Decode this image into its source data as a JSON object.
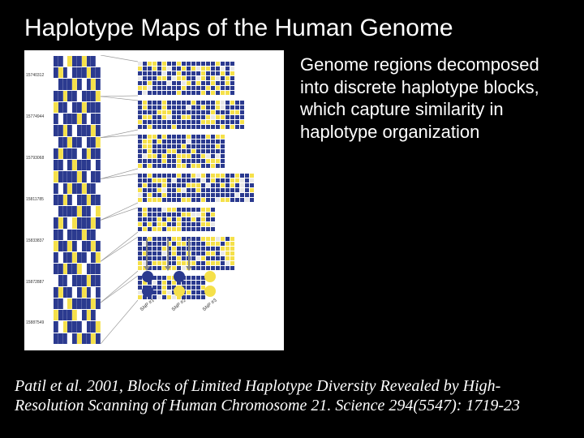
{
  "title": "Haplotype Maps of the Human Genome",
  "description": "Genome regions decomposed into discrete haplotype blocks, which capture similarity in haplotype organization",
  "citation": "Patil et al. 2001, Blocks of Limited Haplotype Diversity Revealed by High-Resolution Scanning of Human Chromosome 21. Science 294(5547): 1719-23",
  "figure": {
    "background_color": "#ffffff",
    "left_column": {
      "labels": [
        "15740312",
        "15774944",
        "15793068",
        "15811785",
        "15833837",
        "15872887",
        "15887549"
      ],
      "snp_colors": {
        "blue": "#2b3a8f",
        "yellow": "#f5e04a",
        "white": "#ffffff"
      },
      "bands": [
        [
          "b",
          "b",
          "w",
          "y",
          "b",
          "b",
          "y",
          "b",
          "b",
          "w"
        ],
        [
          "b",
          "y",
          "b",
          "w",
          "b",
          "b",
          "b",
          "y",
          "b",
          "b"
        ],
        [
          "w",
          "b",
          "b",
          "b",
          "y",
          "b",
          "w",
          "b",
          "y",
          "b"
        ],
        [
          "b",
          "b",
          "y",
          "b",
          "b",
          "w",
          "b",
          "b",
          "b",
          "y"
        ],
        [
          "y",
          "b",
          "b",
          "w",
          "b",
          "b",
          "y",
          "b",
          "b",
          "b"
        ],
        [
          "b",
          "w",
          "b",
          "b",
          "b",
          "y",
          "b",
          "w",
          "b",
          "b"
        ],
        [
          "b",
          "b",
          "y",
          "b",
          "w",
          "b",
          "b",
          "b",
          "y",
          "b"
        ],
        [
          "w",
          "b",
          "b",
          "y",
          "b",
          "b",
          "w",
          "b",
          "b",
          "y"
        ],
        [
          "b",
          "y",
          "b",
          "b",
          "b",
          "w",
          "b",
          "y",
          "b",
          "b"
        ],
        [
          "b",
          "b",
          "w",
          "b",
          "y",
          "b",
          "b",
          "b",
          "w",
          "b"
        ],
        [
          "y",
          "b",
          "b",
          "b",
          "b",
          "y",
          "b",
          "w",
          "b",
          "b"
        ],
        [
          "b",
          "w",
          "b",
          "y",
          "b",
          "b",
          "y",
          "b",
          "b",
          "w"
        ],
        [
          "b",
          "b",
          "y",
          "b",
          "w",
          "b",
          "b",
          "y",
          "b",
          "b"
        ],
        [
          "w",
          "b",
          "b",
          "b",
          "b",
          "y",
          "b",
          "b",
          "w",
          "y"
        ],
        [
          "b",
          "y",
          "b",
          "w",
          "y",
          "b",
          "b",
          "b",
          "y",
          "b"
        ],
        [
          "b",
          "b",
          "w",
          "b",
          "b",
          "b",
          "y",
          "b",
          "b",
          "w"
        ],
        [
          "y",
          "b",
          "b",
          "y",
          "b",
          "w",
          "b",
          "b",
          "y",
          "b"
        ],
        [
          "b",
          "w",
          "b",
          "b",
          "y",
          "b",
          "b",
          "w",
          "b",
          "y"
        ],
        [
          "b",
          "b",
          "y",
          "b",
          "b",
          "y",
          "w",
          "b",
          "b",
          "b"
        ],
        [
          "w",
          "b",
          "b",
          "w",
          "b",
          "b",
          "b",
          "y",
          "b",
          "b"
        ],
        [
          "b",
          "y",
          "b",
          "b",
          "w",
          "b",
          "y",
          "b",
          "w",
          "b"
        ],
        [
          "b",
          "b",
          "w",
          "y",
          "b",
          "b",
          "b",
          "b",
          "y",
          "b"
        ],
        [
          "y",
          "b",
          "b",
          "b",
          "y",
          "w",
          "b",
          "y",
          "b",
          "w"
        ],
        [
          "b",
          "w",
          "y",
          "b",
          "b",
          "b",
          "w",
          "b",
          "b",
          "y"
        ],
        [
          "b",
          "b",
          "b",
          "w",
          "b",
          "y",
          "b",
          "b",
          "y",
          "b"
        ]
      ]
    },
    "haplotype_blocks": [
      {
        "rows": 7,
        "cols": 20,
        "pattern_seed": 1
      },
      {
        "rows": 6,
        "cols": 22,
        "pattern_seed": 2
      },
      {
        "rows": 7,
        "cols": 18,
        "pattern_seed": 3
      },
      {
        "rows": 6,
        "cols": 24,
        "pattern_seed": 4
      },
      {
        "rows": 5,
        "cols": 16,
        "pattern_seed": 5
      },
      {
        "rows": 7,
        "cols": 20,
        "pattern_seed": 6
      },
      {
        "rows": 5,
        "cols": 14,
        "pattern_seed": 7
      }
    ],
    "snp_markers": {
      "labels": [
        "SNP #1",
        "SNP #2",
        "SNP #3"
      ],
      "dots": [
        [
          "b",
          "b"
        ],
        [
          "b",
          "y"
        ],
        [
          "y",
          "y"
        ]
      ],
      "colors": {
        "b": "#2b3a8f",
        "y": "#f5e04a"
      }
    },
    "connector_color": "#999999"
  },
  "colors": {
    "page_background": "#000000",
    "title_text": "#ffffff",
    "body_text": "#ffffff",
    "citation_text": "#ffffff"
  },
  "typography": {
    "title_fontsize": 30,
    "title_fontfamily": "Comic Sans MS",
    "description_fontsize": 22,
    "description_fontfamily": "Arial",
    "citation_fontsize": 20,
    "citation_fontstyle": "italic"
  }
}
